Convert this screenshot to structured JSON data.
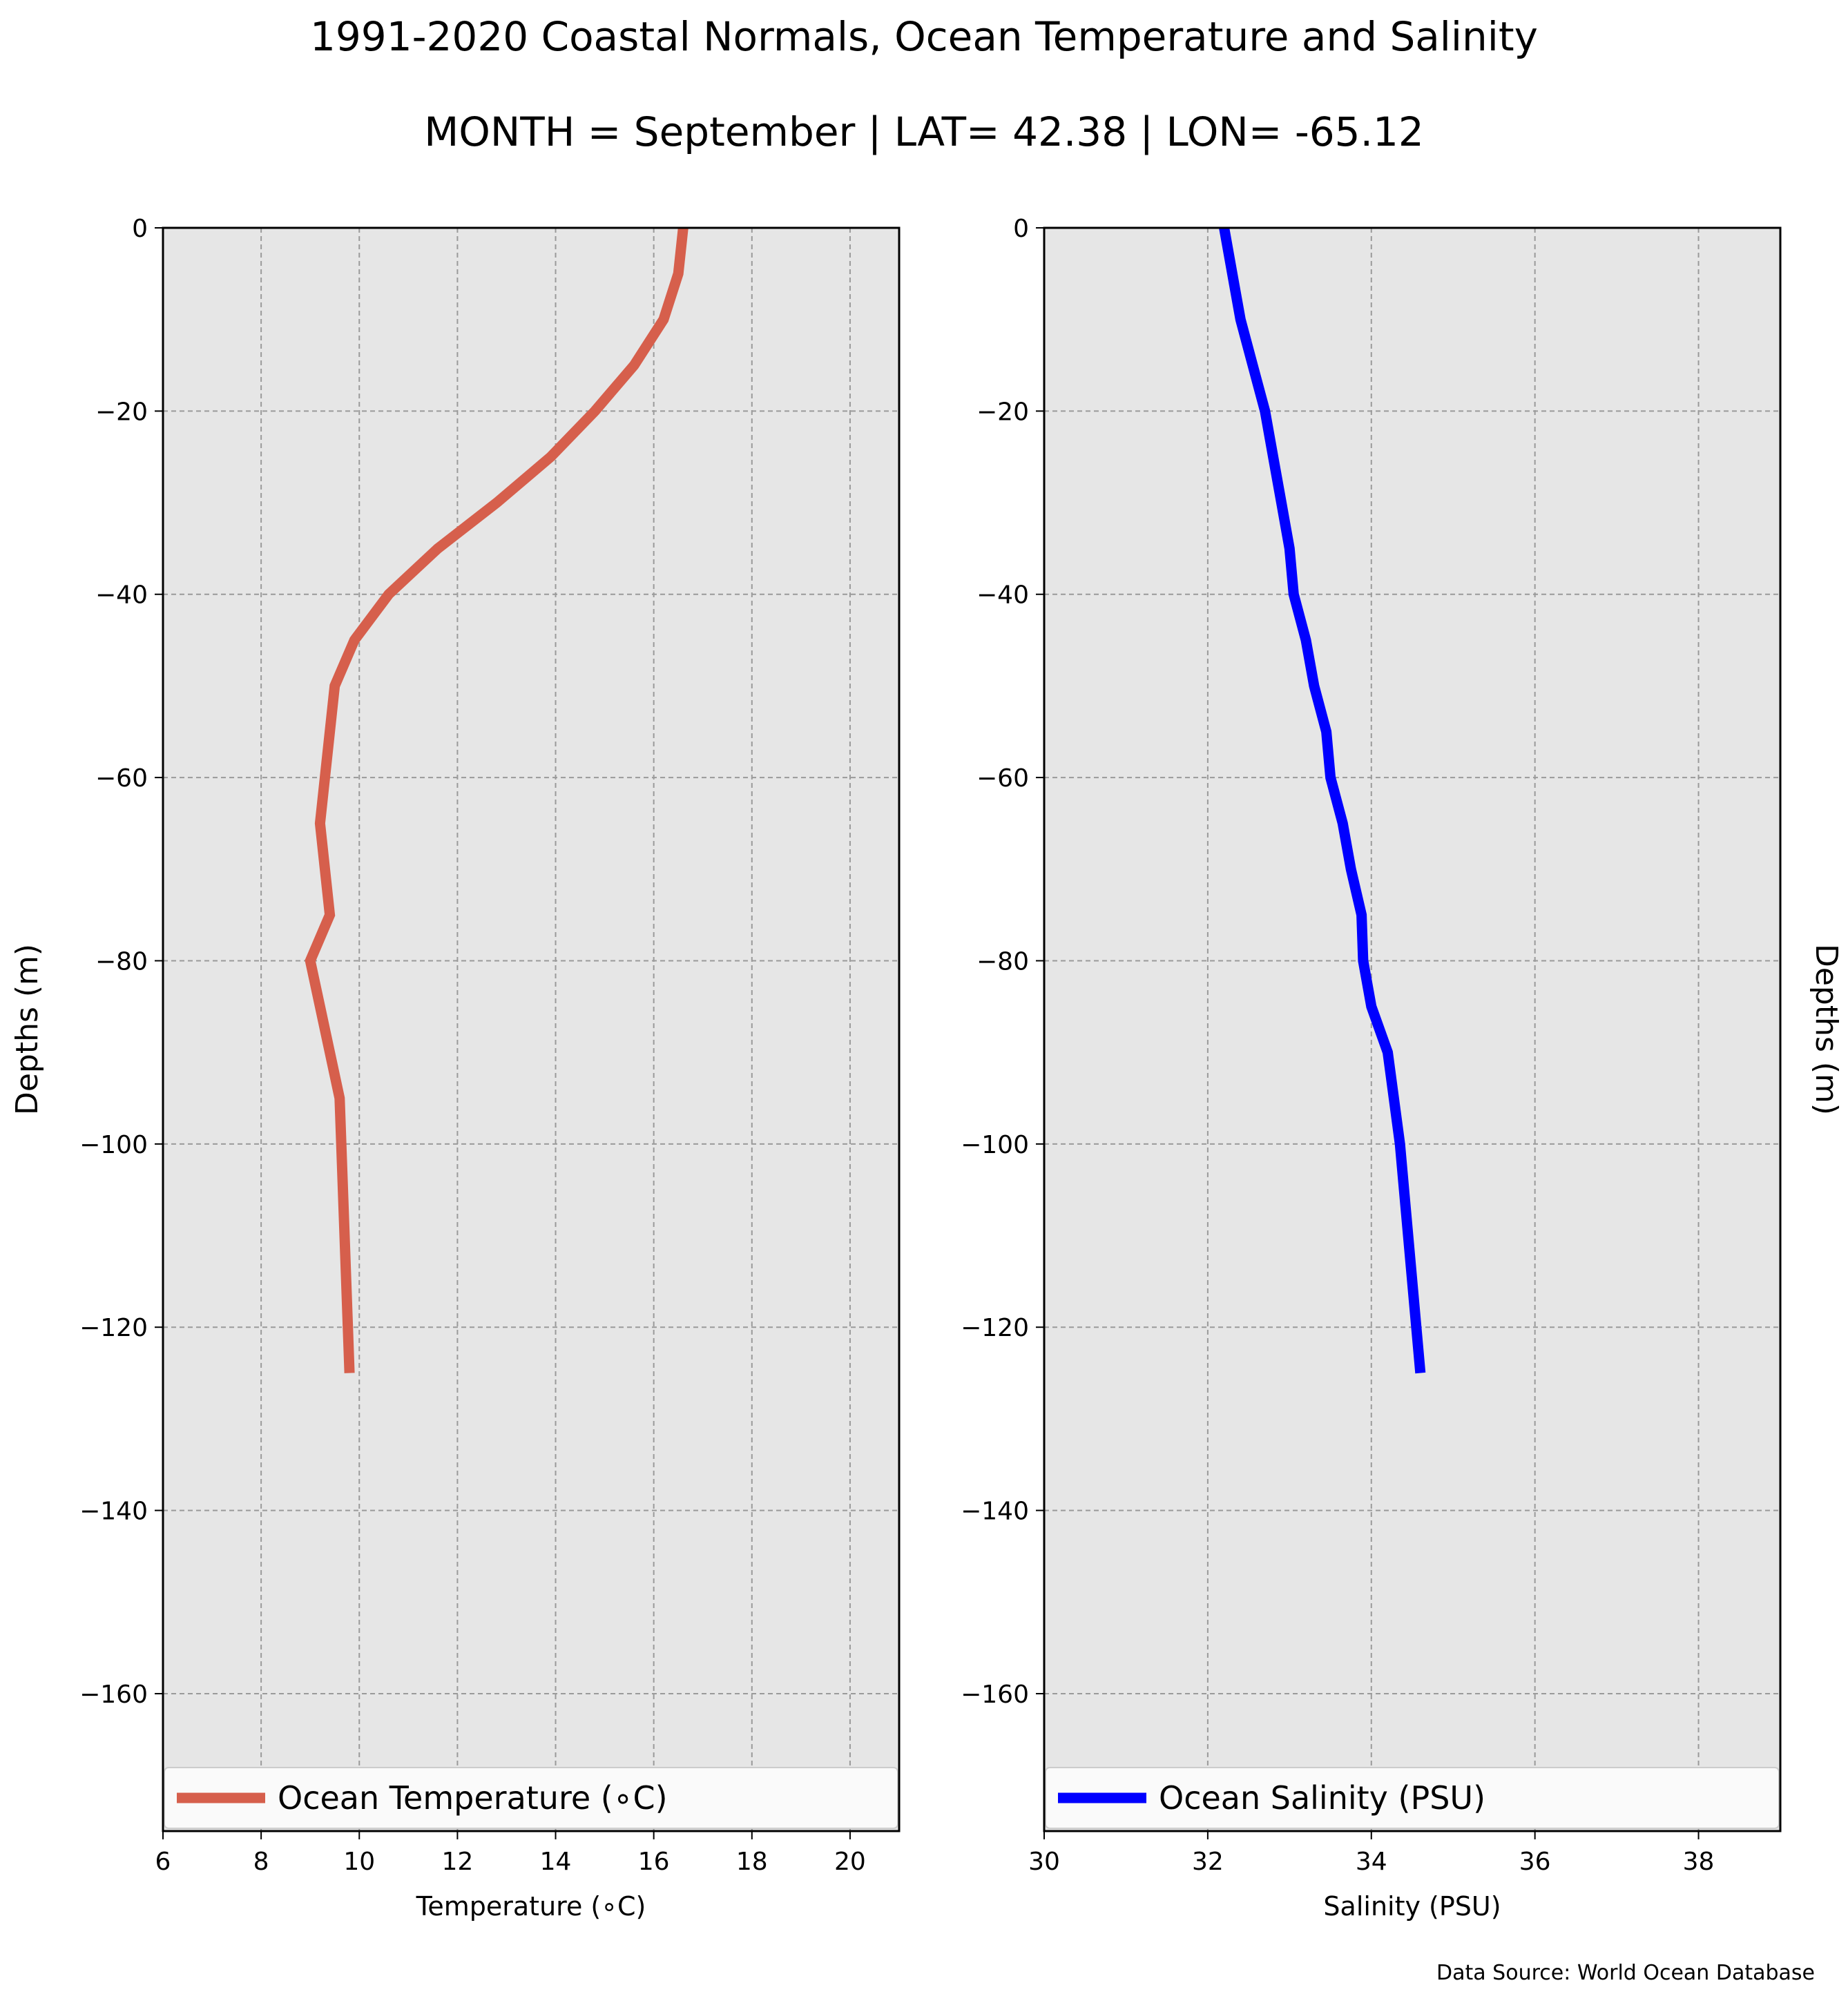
{
  "title": "1991-2020 Coastal Normals, Ocean Temperature and Salinity",
  "subtitle": "MONTH = September | LAT= 42.38 | LON= -65.12",
  "source": "Data Source: World Ocean Database",
  "chart_data": [
    {
      "type": "line",
      "xlabel": "Temperature (∘C)",
      "ylabel": "Depths (m)",
      "xlim": [
        6,
        21
      ],
      "ylim": [
        -175,
        0
      ],
      "xticks": [
        6,
        8,
        10,
        12,
        14,
        16,
        18,
        20
      ],
      "xticklabels": [
        "6",
        "8",
        "10",
        "12",
        "14",
        "16",
        "18",
        "20"
      ],
      "yticks": [
        0,
        -20,
        -40,
        -60,
        -80,
        -100,
        -120,
        -140,
        -160
      ],
      "yticklabels": [
        "0",
        "−20",
        "−40",
        "−60",
        "−80",
        "−100",
        "−120",
        "−140",
        "−160"
      ],
      "grid": true,
      "legend_position": "lower center",
      "series": [
        {
          "name": "Ocean Temperature (∘C)",
          "color": "#d65f4c",
          "x": [
            16.6,
            16.5,
            16.2,
            15.6,
            14.8,
            13.9,
            12.8,
            11.6,
            10.6,
            9.9,
            9.5,
            9.3,
            9.2,
            9.3,
            9.4,
            9.0,
            9.2,
            9.4,
            9.6,
            9.8
          ],
          "y": [
            0,
            -5,
            -10,
            -15,
            -20,
            -25,
            -30,
            -35,
            -40,
            -45,
            -50,
            -60,
            -65,
            -70,
            -75,
            -80,
            -85,
            -90,
            -95,
            -125
          ]
        }
      ]
    },
    {
      "type": "line",
      "xlabel": "Salinity (PSU)",
      "ylabel": "Depths (m)",
      "xlim": [
        30,
        39
      ],
      "ylim": [
        -175,
        0
      ],
      "xticks": [
        30,
        32,
        34,
        36,
        38
      ],
      "xticklabels": [
        "30",
        "32",
        "34",
        "36",
        "38"
      ],
      "yticks": [
        0,
        -20,
        -40,
        -60,
        -80,
        -100,
        -120,
        -140,
        -160
      ],
      "yticklabels": [
        "0",
        "−20",
        "−40",
        "−60",
        "−80",
        "−100",
        "−120",
        "−140",
        "−160"
      ],
      "grid": true,
      "legend_position": "lower center",
      "series": [
        {
          "name": "Ocean Salinity (PSU)",
          "color": "#0000ff",
          "x": [
            32.2,
            32.3,
            32.4,
            32.55,
            32.7,
            32.8,
            32.9,
            33.0,
            33.05,
            33.2,
            33.3,
            33.45,
            33.5,
            33.65,
            33.75,
            33.88,
            33.9,
            34.0,
            34.2,
            34.35,
            34.6
          ],
          "y": [
            0,
            -5,
            -10,
            -15,
            -20,
            -25,
            -30,
            -35,
            -40,
            -45,
            -50,
            -55,
            -60,
            -65,
            -70,
            -75,
            -80,
            -85,
            -90,
            -100,
            -125
          ]
        }
      ]
    }
  ]
}
